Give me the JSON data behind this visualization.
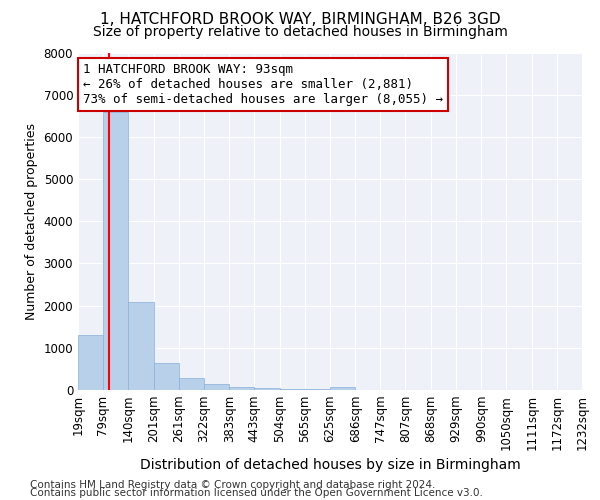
{
  "title": "1, HATCHFORD BROOK WAY, BIRMINGHAM, B26 3GD",
  "subtitle": "Size of property relative to detached houses in Birmingham",
  "xlabel": "Distribution of detached houses by size in Birmingham",
  "ylabel": "Number of detached properties",
  "footnote1": "Contains HM Land Registry data © Crown copyright and database right 2024.",
  "footnote2": "Contains public sector information licensed under the Open Government Licence v3.0.",
  "bin_edges": [
    19,
    79,
    140,
    201,
    261,
    322,
    383,
    443,
    504,
    565,
    625,
    686,
    747,
    807,
    868,
    929,
    990,
    1050,
    1111,
    1172,
    1232
  ],
  "bar_heights": [
    1300,
    6600,
    2080,
    650,
    290,
    145,
    80,
    55,
    35,
    20,
    80,
    0,
    0,
    0,
    0,
    0,
    0,
    0,
    0,
    0
  ],
  "bar_color": "#b8d0ea",
  "bar_edge_color": "#8ab0d8",
  "red_line_x": 93,
  "ylim": [
    0,
    8000
  ],
  "annotation_line1": "1 HATCHFORD BROOK WAY: 93sqm",
  "annotation_line2": "← 26% of detached houses are smaller (2,881)",
  "annotation_line3": "73% of semi-detached houses are larger (8,055) →",
  "annotation_box_facecolor": "#ffffff",
  "annotation_box_edgecolor": "#cc0000",
  "title_fontsize": 11,
  "subtitle_fontsize": 10,
  "xlabel_fontsize": 10,
  "ylabel_fontsize": 9,
  "tick_fontsize": 8.5,
  "annotation_fontsize": 9,
  "footnote_fontsize": 7.5,
  "bg_color": "#eef2f8"
}
